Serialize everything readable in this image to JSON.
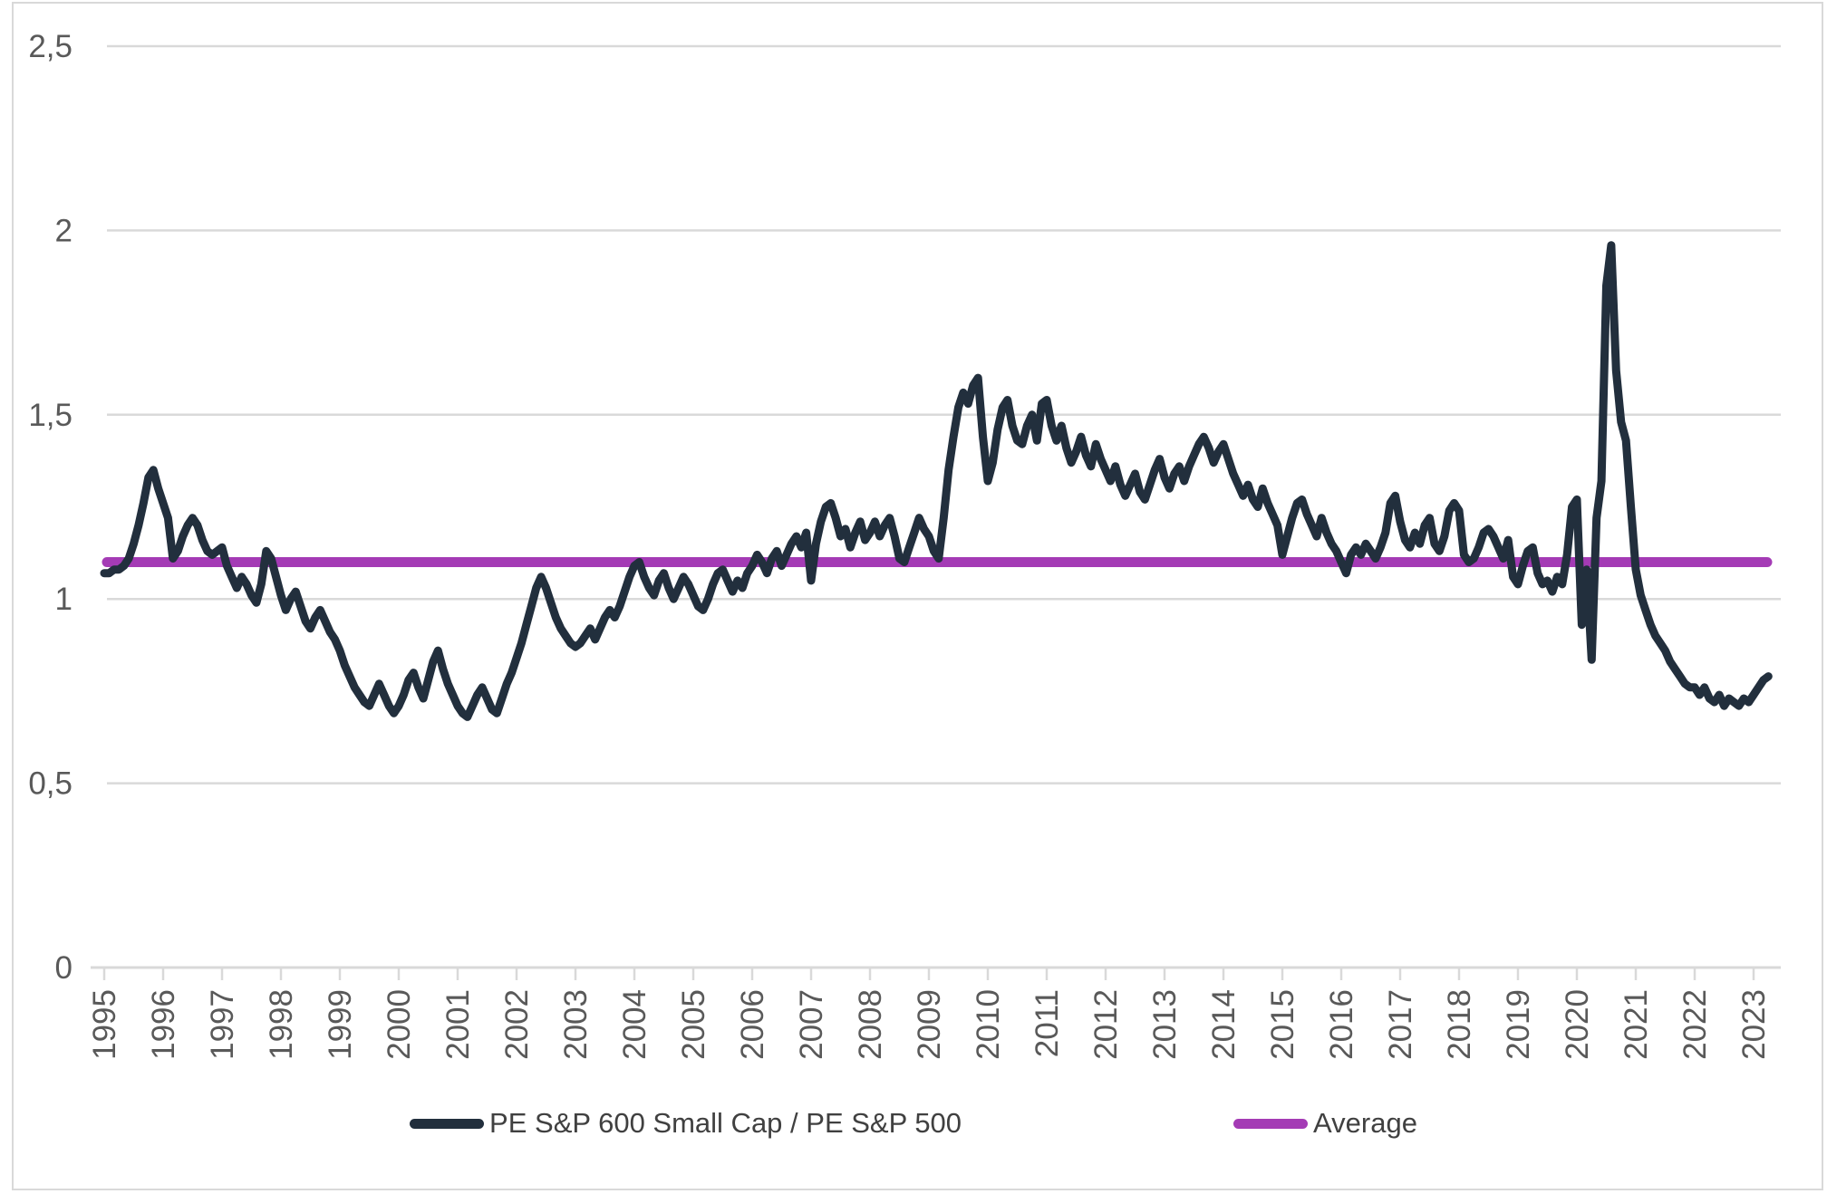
{
  "chart": {
    "background": "#FFFFFF",
    "frame_color": "#D9D9D9",
    "gridline_color": "#D9D9D9",
    "axis_text_color": "#595959",
    "legend_text_color": "#404040"
  },
  "chart_data": {
    "type": "line",
    "title": "",
    "xlabel": "",
    "ylabel": "",
    "grid": "horizontal-only",
    "legend_position": "bottom",
    "ylim": [
      0,
      2.5
    ],
    "y_tick_labels": [
      "0",
      "0,5",
      "1",
      "1,5",
      "2",
      "2,5"
    ],
    "y_tick_values": [
      0,
      0.5,
      1,
      1.5,
      2,
      2.5
    ],
    "x_tick_labels": [
      "1995",
      "1996",
      "1997",
      "1998",
      "1999",
      "2000",
      "2001",
      "2002",
      "2003",
      "2004",
      "2005",
      "2006",
      "2007",
      "2008",
      "2009",
      "2010",
      "2011",
      "2012",
      "2013",
      "2014",
      "2015",
      "2016",
      "2017",
      "2018",
      "2019",
      "2020",
      "2021",
      "2022",
      "2023"
    ],
    "frequency": "monthly",
    "x_start": "1995-01",
    "x_end": "2023-04",
    "series": [
      {
        "name": "PE S&P 600 Small Cap / PE S&P 500",
        "color": "#222F3D",
        "line_width": 9,
        "values": [
          1.07,
          1.07,
          1.08,
          1.08,
          1.09,
          1.11,
          1.15,
          1.2,
          1.26,
          1.33,
          1.35,
          1.3,
          1.26,
          1.22,
          1.11,
          1.13,
          1.17,
          1.2,
          1.22,
          1.2,
          1.16,
          1.13,
          1.12,
          1.13,
          1.14,
          1.09,
          1.06,
          1.03,
          1.06,
          1.04,
          1.01,
          0.99,
          1.04,
          1.13,
          1.11,
          1.06,
          1.01,
          0.97,
          1.0,
          1.02,
          0.98,
          0.94,
          0.92,
          0.95,
          0.97,
          0.94,
          0.91,
          0.89,
          0.86,
          0.82,
          0.79,
          0.76,
          0.74,
          0.72,
          0.71,
          0.74,
          0.77,
          0.74,
          0.71,
          0.69,
          0.71,
          0.74,
          0.78,
          0.8,
          0.76,
          0.73,
          0.78,
          0.83,
          0.86,
          0.81,
          0.77,
          0.74,
          0.71,
          0.69,
          0.68,
          0.71,
          0.74,
          0.76,
          0.73,
          0.7,
          0.69,
          0.73,
          0.77,
          0.8,
          0.84,
          0.88,
          0.93,
          0.98,
          1.03,
          1.06,
          1.03,
          0.99,
          0.95,
          0.92,
          0.9,
          0.88,
          0.87,
          0.88,
          0.9,
          0.92,
          0.89,
          0.92,
          0.95,
          0.97,
          0.95,
          0.98,
          1.02,
          1.06,
          1.09,
          1.1,
          1.06,
          1.03,
          1.01,
          1.05,
          1.07,
          1.03,
          1.0,
          1.03,
          1.06,
          1.04,
          1.01,
          0.98,
          0.97,
          1.0,
          1.04,
          1.07,
          1.08,
          1.05,
          1.02,
          1.05,
          1.03,
          1.07,
          1.09,
          1.12,
          1.1,
          1.07,
          1.11,
          1.13,
          1.09,
          1.12,
          1.15,
          1.17,
          1.14,
          1.18,
          1.05,
          1.15,
          1.21,
          1.25,
          1.26,
          1.22,
          1.17,
          1.19,
          1.14,
          1.18,
          1.21,
          1.16,
          1.18,
          1.21,
          1.17,
          1.2,
          1.22,
          1.17,
          1.11,
          1.1,
          1.14,
          1.18,
          1.22,
          1.19,
          1.17,
          1.13,
          1.11,
          1.22,
          1.35,
          1.44,
          1.52,
          1.56,
          1.53,
          1.58,
          1.6,
          1.44,
          1.32,
          1.37,
          1.46,
          1.52,
          1.54,
          1.47,
          1.43,
          1.42,
          1.47,
          1.5,
          1.43,
          1.53,
          1.54,
          1.47,
          1.43,
          1.47,
          1.41,
          1.37,
          1.4,
          1.44,
          1.39,
          1.36,
          1.42,
          1.38,
          1.35,
          1.32,
          1.36,
          1.31,
          1.28,
          1.31,
          1.34,
          1.29,
          1.27,
          1.31,
          1.35,
          1.38,
          1.33,
          1.3,
          1.34,
          1.36,
          1.32,
          1.36,
          1.39,
          1.42,
          1.44,
          1.41,
          1.37,
          1.4,
          1.42,
          1.38,
          1.34,
          1.31,
          1.28,
          1.31,
          1.27,
          1.25,
          1.3,
          1.26,
          1.23,
          1.2,
          1.12,
          1.17,
          1.22,
          1.26,
          1.27,
          1.23,
          1.2,
          1.17,
          1.22,
          1.18,
          1.15,
          1.13,
          1.1,
          1.07,
          1.12,
          1.14,
          1.12,
          1.15,
          1.13,
          1.11,
          1.14,
          1.18,
          1.26,
          1.28,
          1.21,
          1.16,
          1.14,
          1.18,
          1.15,
          1.2,
          1.22,
          1.15,
          1.13,
          1.17,
          1.24,
          1.26,
          1.24,
          1.12,
          1.1,
          1.11,
          1.14,
          1.18,
          1.19,
          1.17,
          1.14,
          1.11,
          1.16,
          1.06,
          1.04,
          1.09,
          1.13,
          1.14,
          1.07,
          1.04,
          1.05,
          1.02,
          1.06,
          1.04,
          1.12,
          1.25,
          1.27,
          0.93,
          1.08,
          0.835,
          1.22,
          1.32,
          1.85,
          1.96,
          1.62,
          1.48,
          1.43,
          1.25,
          1.08,
          1.01,
          0.97,
          0.93,
          0.9,
          0.88,
          0.86,
          0.83,
          0.81,
          0.79,
          0.77,
          0.76,
          0.76,
          0.74,
          0.76,
          0.73,
          0.72,
          0.74,
          0.71,
          0.73,
          0.72,
          0.71,
          0.73,
          0.72,
          0.74,
          0.76,
          0.78,
          0.79
        ]
      },
      {
        "name": "Average",
        "color": "#A43BB5",
        "line_width": 11,
        "type": "constant",
        "value": 1.1
      }
    ]
  }
}
